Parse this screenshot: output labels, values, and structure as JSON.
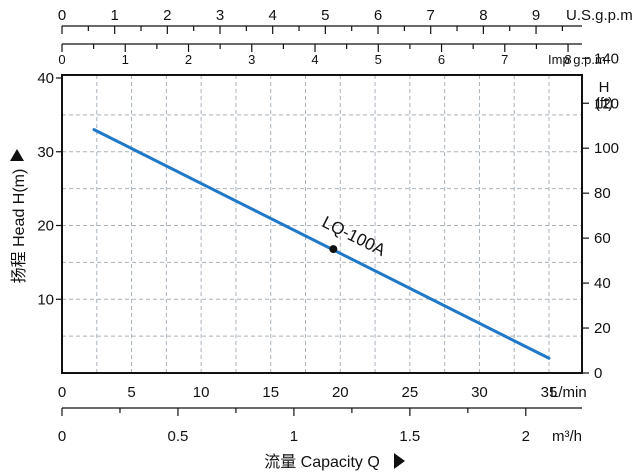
{
  "chart_data": {
    "type": "line",
    "title": "",
    "series": [
      {
        "name": "LQ-100A",
        "x": [
          2.3,
          35
        ],
        "y": [
          33,
          2
        ],
        "color": "#1f78c8"
      }
    ],
    "marker": {
      "x": 19.5,
      "y": 16.8,
      "label": "LQ-100A"
    },
    "xlim": [
      0,
      40
    ],
    "ylim": [
      0,
      40
    ],
    "grid": true,
    "axes": {
      "bottom_lpm": {
        "unit": "L/min",
        "ticks": [
          0,
          5,
          10,
          15,
          20,
          25,
          30,
          35
        ],
        "labels": [
          "0",
          "5",
          "10",
          "15",
          "20",
          "25",
          "30",
          "35"
        ]
      },
      "bottom_m3h": {
        "unit": "m³/h",
        "ticks": [
          0,
          0.5,
          1,
          1.5,
          2
        ],
        "labels": [
          "0",
          "0.5",
          "1",
          "1.5",
          "2"
        ]
      },
      "top_usgpm": {
        "unit": "U.S.g.p.m",
        "ticks": [
          0,
          1,
          2,
          3,
          4,
          5,
          6,
          7,
          8,
          9
        ],
        "labels": [
          "0",
          "1",
          "2",
          "3",
          "4",
          "5",
          "6",
          "7",
          "8",
          "9"
        ]
      },
      "top_impgpm": {
        "unit": "Imp g.p.m",
        "ticks": [
          0,
          1,
          2,
          3,
          4,
          5,
          6,
          7,
          8
        ],
        "labels": [
          "0",
          "1",
          "2",
          "3",
          "4",
          "5",
          "6",
          "7",
          "8"
        ]
      },
      "left_m": {
        "title": "扬程 Head H(m)",
        "ticks": [
          10,
          20,
          30,
          40
        ],
        "labels": [
          "10",
          "20",
          "30",
          "40"
        ]
      },
      "right_ft": {
        "unit": "H (ft)",
        "unit_lines": [
          "H",
          "(ft)"
        ],
        "ticks": [
          0,
          20,
          40,
          60,
          80,
          100,
          120,
          140
        ],
        "labels": [
          "0",
          "20",
          "40",
          "60",
          "80",
          "100",
          "120",
          "140"
        ]
      },
      "bottom_title": "流量 Capacity Q"
    }
  }
}
